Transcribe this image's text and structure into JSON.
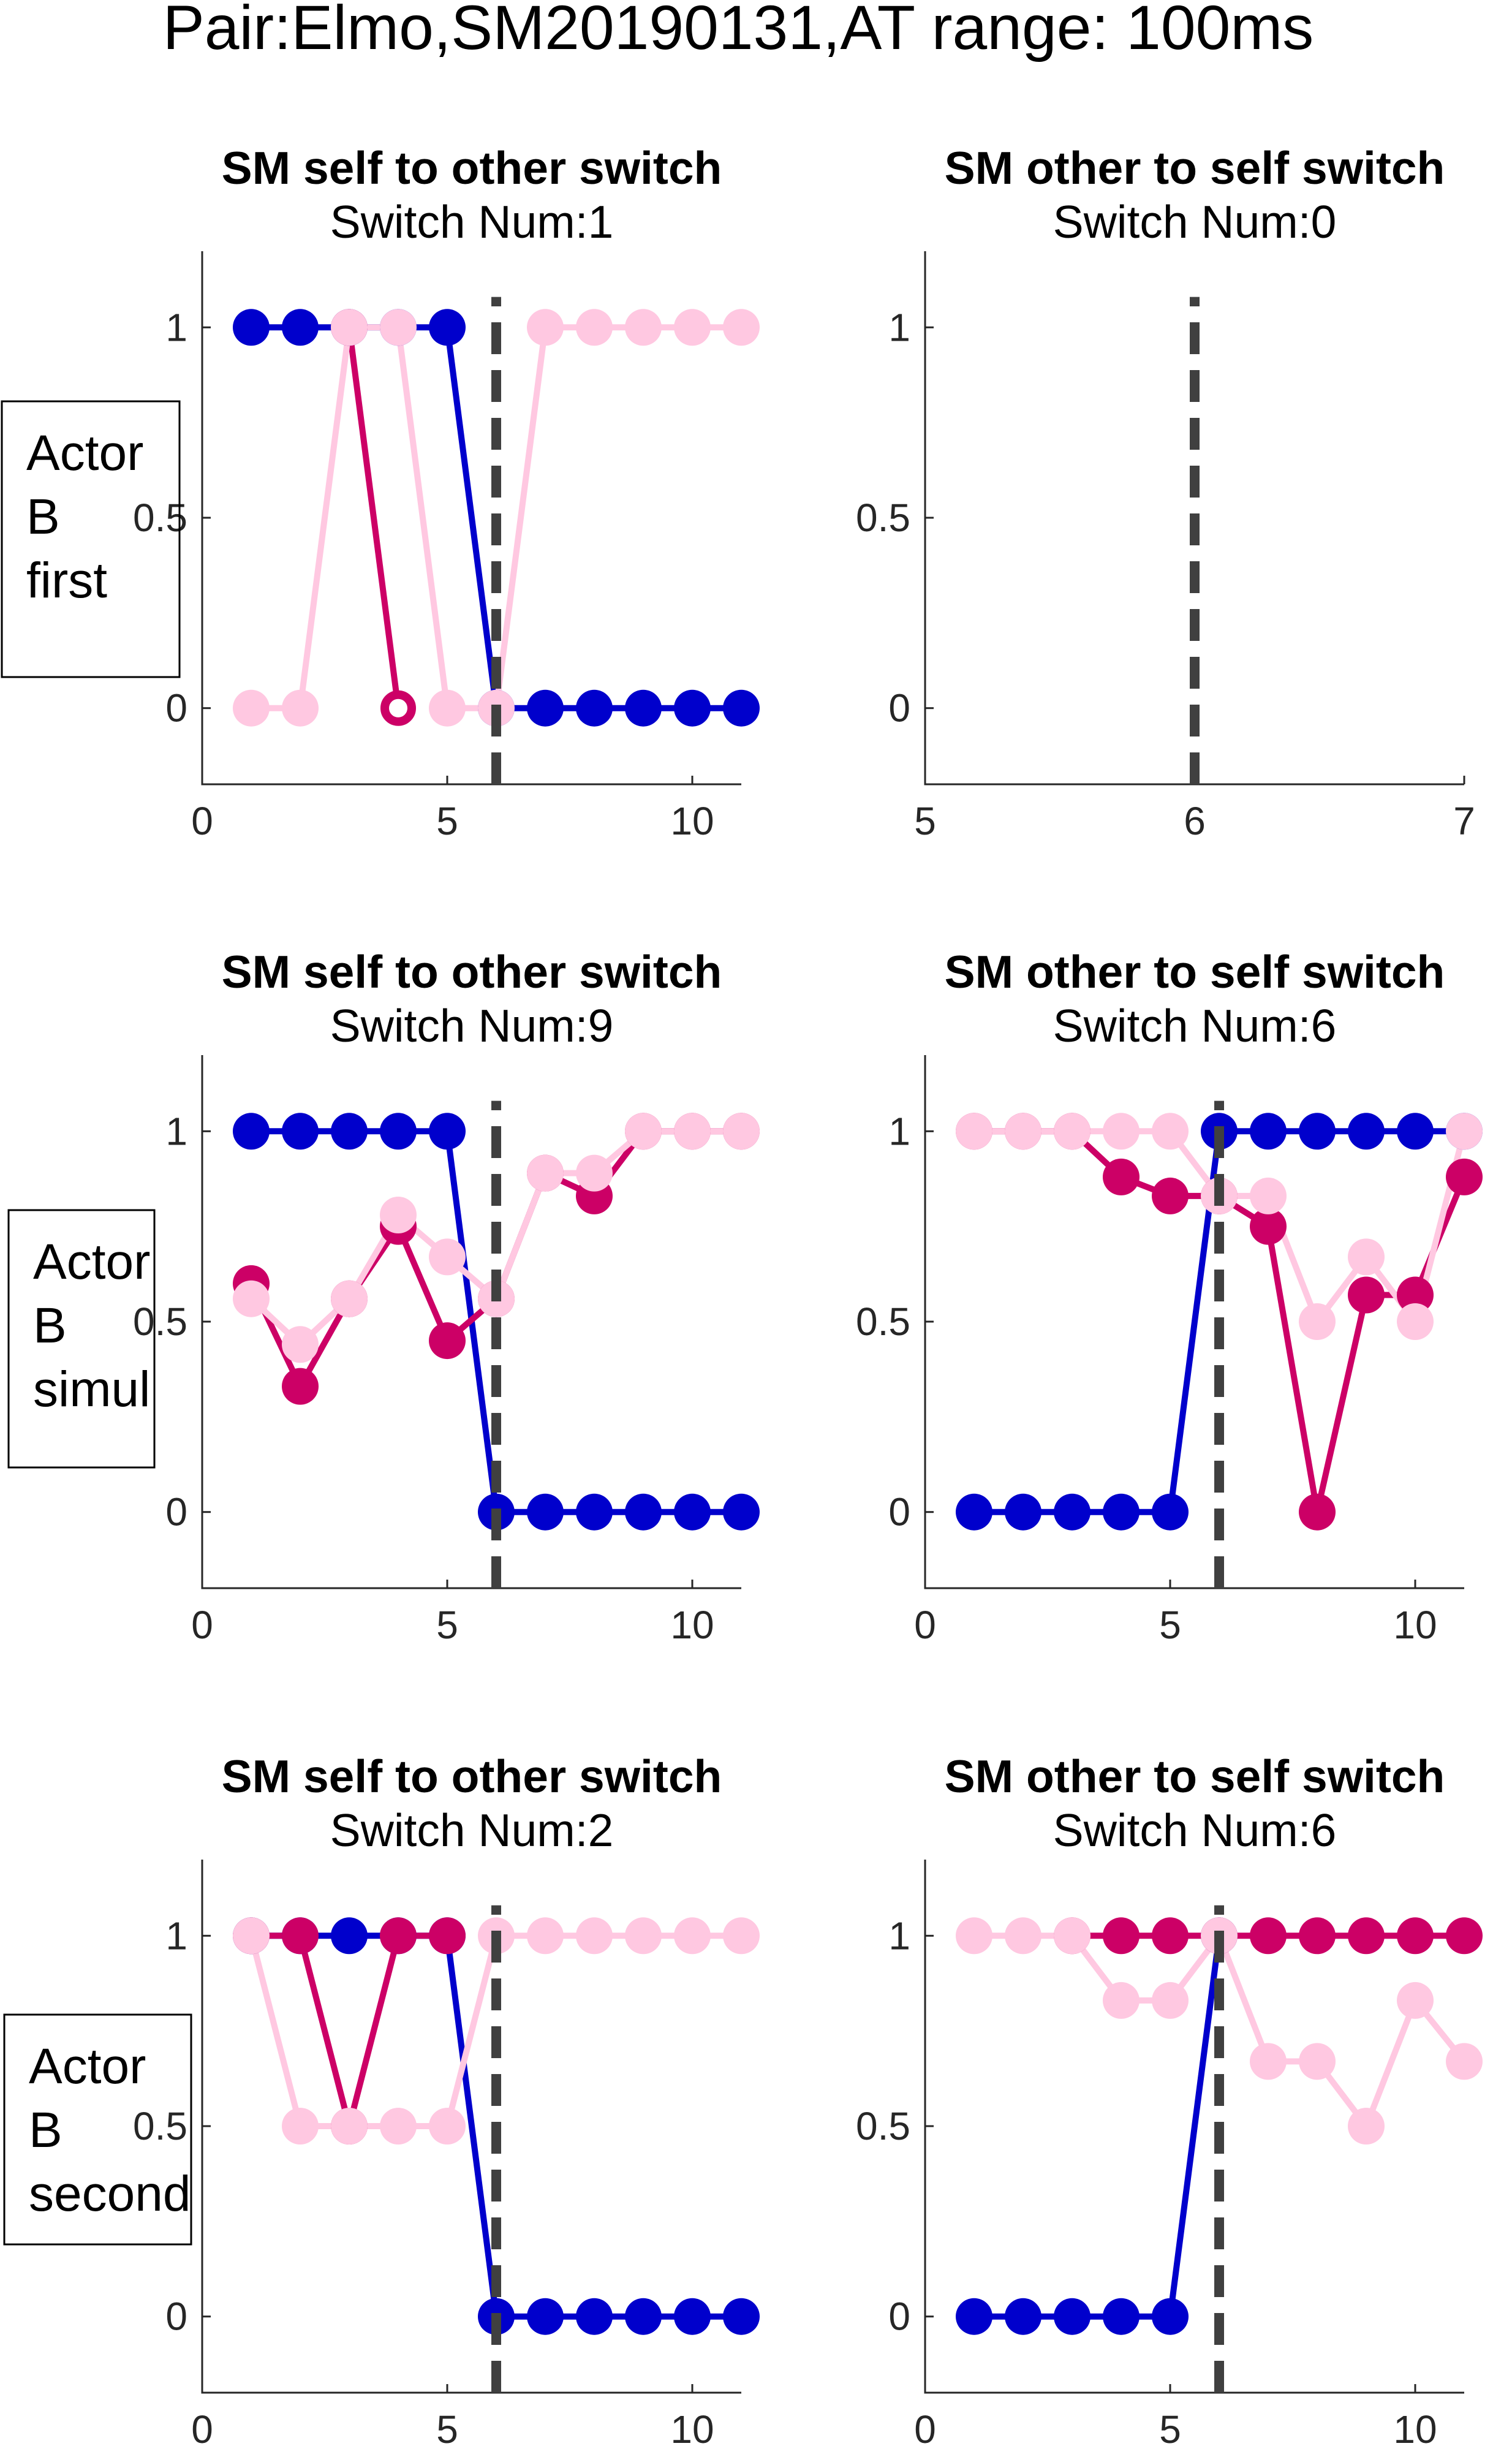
{
  "figure": {
    "title": "Pair:Elmo,SM20190131,AT range: 100ms"
  },
  "colors": {
    "series_a": "#0000cc",
    "series_b": "#cc0066",
    "series_c": "#ffc8e1",
    "switch_line": "#404040"
  },
  "chart_data": [
    {
      "type": "line",
      "title": "SM self to other switch",
      "subtitle": "Switch Num:1",
      "row_label": [
        "Actor",
        "B",
        "first"
      ],
      "xlim": [
        0,
        11
      ],
      "ylim": [
        -0.2,
        1.2
      ],
      "xticks": [
        0,
        5,
        10
      ],
      "yticks": [
        0,
        0.5,
        1
      ],
      "xticklabels": [
        "0",
        "5",
        "10"
      ],
      "yticklabels": [
        "0",
        "0.5",
        "1"
      ],
      "switch_x": 6,
      "series": [
        {
          "color_key": "series_a",
          "x": [
            1,
            2,
            3,
            4,
            5,
            6,
            7,
            8,
            9,
            10,
            11
          ],
          "y": [
            1,
            1,
            1,
            1,
            1,
            0,
            0,
            0,
            0,
            0,
            0
          ],
          "open_points": []
        },
        {
          "color_key": "series_b",
          "x": [
            3,
            4
          ],
          "y": [
            1,
            0
          ],
          "open_points": [
            4
          ]
        },
        {
          "color_key": "series_c",
          "x": [
            1,
            2,
            3,
            4,
            5,
            6,
            7,
            8,
            9,
            10,
            11
          ],
          "y": [
            0,
            0,
            1,
            1,
            0,
            0,
            1,
            1,
            1,
            1,
            1
          ],
          "open_points": []
        }
      ]
    },
    {
      "type": "line",
      "title": "SM other to self switch",
      "subtitle": "Switch Num:0",
      "row_label": null,
      "xlim": [
        5,
        7
      ],
      "ylim": [
        -0.2,
        1.2
      ],
      "xticks": [
        5,
        6,
        7
      ],
      "yticks": [
        0,
        0.5,
        1
      ],
      "xticklabels": [
        "5",
        "6",
        "7"
      ],
      "yticklabels": [
        "0",
        "0.5",
        "1"
      ],
      "switch_x": 6,
      "series": []
    },
    {
      "type": "line",
      "title": "SM self to other switch",
      "subtitle": "Switch Num:9",
      "row_label": [
        "Actor",
        "B",
        "simul"
      ],
      "xlim": [
        0,
        11
      ],
      "ylim": [
        -0.2,
        1.2
      ],
      "xticks": [
        0,
        5,
        10
      ],
      "yticks": [
        0,
        0.5,
        1
      ],
      "xticklabels": [
        "0",
        "5",
        "10"
      ],
      "yticklabels": [
        "0",
        "0.5",
        "1"
      ],
      "switch_x": 6,
      "series": [
        {
          "color_key": "series_a",
          "x": [
            1,
            2,
            3,
            4,
            5,
            6,
            7,
            8,
            9,
            10,
            11
          ],
          "y": [
            1,
            1,
            1,
            1,
            1,
            0,
            0,
            0,
            0,
            0,
            0
          ],
          "open_points": []
        },
        {
          "color_key": "series_b",
          "x": [
            1,
            2,
            3,
            4,
            5,
            6,
            7,
            8,
            9,
            10,
            11
          ],
          "y": [
            0.6,
            0.33,
            0.56,
            0.75,
            0.45,
            0.56,
            0.89,
            0.83,
            1,
            1,
            1
          ],
          "open_points": []
        },
        {
          "color_key": "series_c",
          "x": [
            1,
            2,
            3,
            4,
            5,
            6,
            7,
            8,
            9,
            10,
            11
          ],
          "y": [
            0.56,
            0.44,
            0.56,
            0.78,
            0.67,
            0.56,
            0.89,
            0.89,
            1,
            1,
            1
          ],
          "open_points": []
        }
      ]
    },
    {
      "type": "line",
      "title": "SM other to self switch",
      "subtitle": "Switch Num:6",
      "row_label": null,
      "xlim": [
        0,
        11
      ],
      "ylim": [
        -0.2,
        1.2
      ],
      "xticks": [
        0,
        5,
        10
      ],
      "yticks": [
        0,
        0.5,
        1
      ],
      "xticklabels": [
        "0",
        "5",
        "10"
      ],
      "yticklabels": [
        "0",
        "0.5",
        "1"
      ],
      "switch_x": 6,
      "series": [
        {
          "color_key": "series_a",
          "x": [
            1,
            2,
            3,
            4,
            5,
            6,
            7,
            8,
            9,
            10,
            11
          ],
          "y": [
            0,
            0,
            0,
            0,
            0,
            1,
            1,
            1,
            1,
            1,
            1
          ],
          "open_points": []
        },
        {
          "color_key": "series_b",
          "x": [
            1,
            2,
            3,
            4,
            5,
            6,
            7,
            8,
            9,
            10,
            11
          ],
          "y": [
            1,
            1,
            1,
            0.88,
            0.83,
            0.83,
            0.75,
            0,
            0.57,
            0.57,
            0.88
          ],
          "open_points": []
        },
        {
          "color_key": "series_c",
          "x": [
            1,
            2,
            3,
            4,
            5,
            6,
            7,
            8,
            9,
            10,
            11
          ],
          "y": [
            1,
            1,
            1,
            1,
            1,
            0.83,
            0.83,
            0.5,
            0.67,
            0.5,
            1
          ],
          "open_points": []
        }
      ]
    },
    {
      "type": "line",
      "title": "SM self to other switch",
      "subtitle": "Switch Num:2",
      "row_label": [
        "Actor",
        "B",
        "second"
      ],
      "xlim": [
        0,
        11
      ],
      "ylim": [
        -0.2,
        1.2
      ],
      "xticks": [
        0,
        5,
        10
      ],
      "yticks": [
        0,
        0.5,
        1
      ],
      "xticklabels": [
        "0",
        "5",
        "10"
      ],
      "yticklabels": [
        "0",
        "0.5",
        "1"
      ],
      "switch_x": 6,
      "series": [
        {
          "color_key": "series_a",
          "x": [
            1,
            2,
            3,
            4,
            5,
            6,
            7,
            8,
            9,
            10,
            11
          ],
          "y": [
            1,
            1,
            1,
            1,
            1,
            0,
            0,
            0,
            0,
            0,
            0
          ],
          "open_points": []
        },
        {
          "color_key": "series_b",
          "x": [
            1,
            2,
            3,
            4,
            5
          ],
          "y": [
            1,
            1,
            0.5,
            1,
            1
          ],
          "open_points": []
        },
        {
          "color_key": "series_c",
          "x": [
            1,
            2,
            3,
            4,
            5,
            6,
            7,
            8,
            9,
            10,
            11
          ],
          "y": [
            1,
            0.5,
            0.5,
            0.5,
            0.5,
            1,
            1,
            1,
            1,
            1,
            1
          ],
          "open_points": []
        }
      ]
    },
    {
      "type": "line",
      "title": "SM other to self switch",
      "subtitle": "Switch Num:6",
      "row_label": null,
      "xlim": [
        0,
        11
      ],
      "ylim": [
        -0.2,
        1.2
      ],
      "xticks": [
        0,
        5,
        10
      ],
      "yticks": [
        0,
        0.5,
        1
      ],
      "xticklabels": [
        "0",
        "5",
        "10"
      ],
      "yticklabels": [
        "0",
        "0.5",
        "1"
      ],
      "switch_x": 6,
      "series": [
        {
          "color_key": "series_a",
          "x": [
            1,
            2,
            3,
            4,
            5,
            6
          ],
          "y": [
            0,
            0,
            0,
            0,
            0,
            1
          ],
          "open_points": []
        },
        {
          "color_key": "series_b",
          "x": [
            3,
            4,
            5,
            6,
            7,
            8,
            9,
            10,
            11
          ],
          "y": [
            1,
            1,
            1,
            1,
            1,
            1,
            1,
            1,
            1
          ],
          "open_points": []
        },
        {
          "color_key": "series_c",
          "x": [
            1,
            2,
            3,
            4,
            5,
            6,
            7,
            8,
            9,
            10,
            11
          ],
          "y": [
            1,
            1,
            1,
            0.83,
            0.83,
            1,
            0.67,
            0.67,
            0.5,
            0.83,
            0.67
          ],
          "open_points": []
        }
      ]
    }
  ]
}
